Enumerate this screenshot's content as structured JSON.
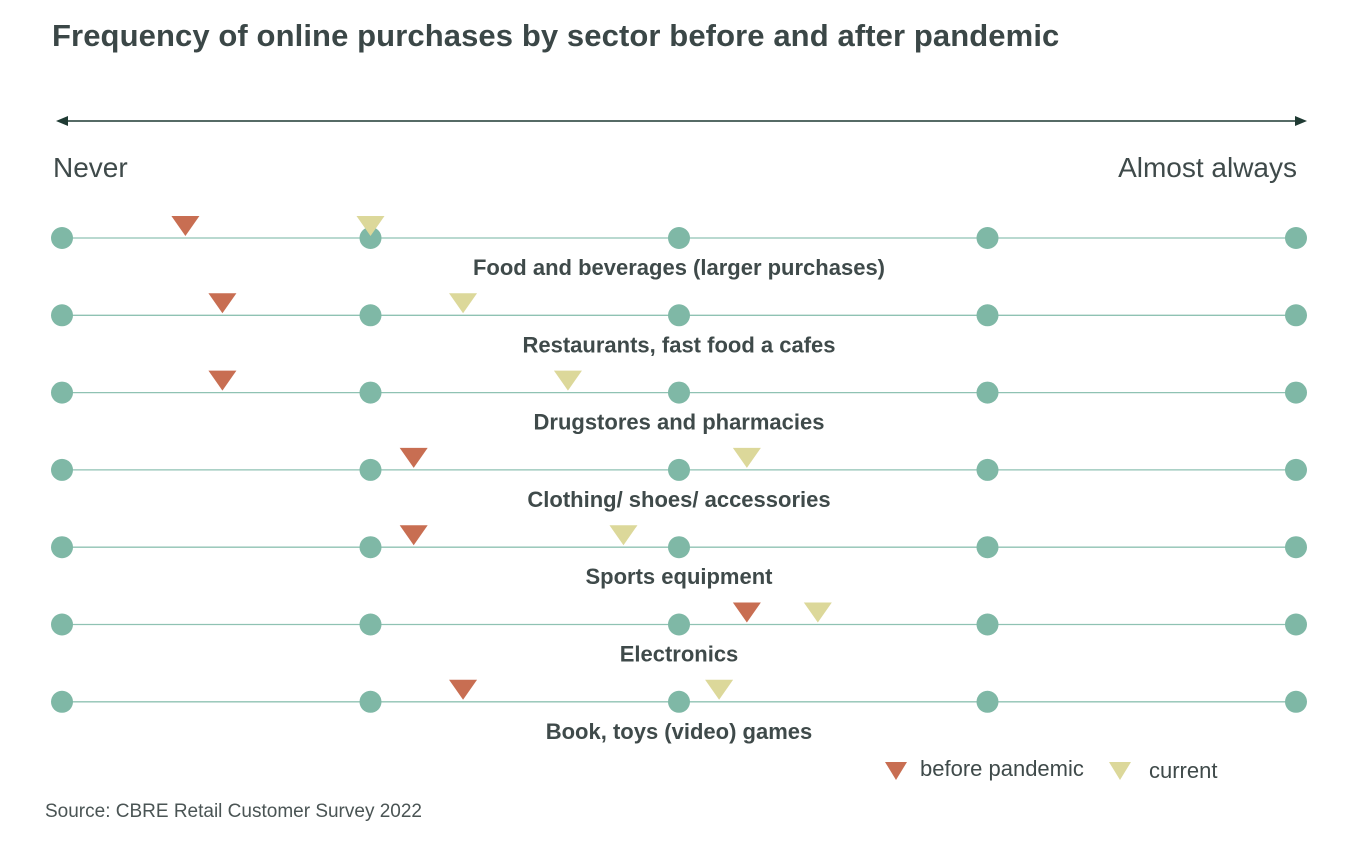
{
  "title": "Frequency of online purchases by sector before and after pandemic",
  "source": "Source: CBRE Retail Customer Survey 2022",
  "colors": {
    "before": "#c86e52",
    "current": "#dcd89a",
    "dot": "#7fb8a6",
    "line": "#8fc2b3",
    "arrow": "#1f3a33",
    "label": "#3f4a4a"
  },
  "chart_data": {
    "type": "scatter",
    "title": "Frequency of online purchases by sector before and after pandemic",
    "scale": {
      "min": 0,
      "max": 4,
      "ticks": [
        0,
        1,
        2,
        3,
        4
      ],
      "left_label": "Never",
      "right_label": "Almost always"
    },
    "categories": [
      "Food and beverages (larger purchases)",
      "Restaurants, fast food a cafes",
      "Drugstores and pharmacies",
      "Clothing/ shoes/ accessories",
      "Sports equipment",
      "Electronics",
      "Book, toys (video) games"
    ],
    "series": [
      {
        "name": "before pandemic",
        "marker": "triangle-down",
        "color": "#c86e52",
        "values": [
          0.4,
          0.52,
          0.52,
          1.14,
          1.14,
          2.22,
          1.3
        ]
      },
      {
        "name": "current",
        "marker": "triangle-down",
        "color": "#dcd89a",
        "values": [
          1.0,
          1.3,
          1.64,
          2.22,
          1.82,
          2.45,
          2.13
        ]
      }
    ],
    "legend": {
      "position": "bottom-right"
    },
    "grid": false
  }
}
